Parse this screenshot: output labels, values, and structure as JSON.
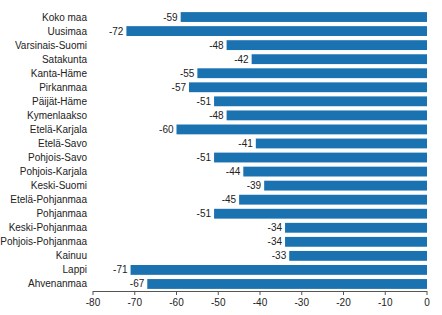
{
  "chart_data": {
    "type": "bar",
    "orientation": "horizontal",
    "categories": [
      "Koko maa",
      "Uusimaa",
      "Varsinais-Suomi",
      "Satakunta",
      "Kanta-Häme",
      "Pirkanmaa",
      "Päijät-Häme",
      "Kymenlaakso",
      "Etelä-Karjala",
      "Etelä-Savo",
      "Pohjois-Savo",
      "Pohjois-Karjala",
      "Keski-Suomi",
      "Etelä-Pohjanmaa",
      "Pohjanmaa",
      "Keski-Pohjanmaa",
      "Pohjois-Pohjanmaa",
      "Kainuu",
      "Lappi",
      "Ahvenanmaa"
    ],
    "values": [
      -59,
      -72,
      -48,
      -42,
      -55,
      -57,
      -51,
      -48,
      -60,
      -41,
      -51,
      -44,
      -39,
      -45,
      -51,
      -34,
      -34,
      -33,
      -71,
      -67
    ],
    "color": "#1a72b0",
    "xlim": [
      -80,
      0
    ],
    "xticks": [
      -80,
      -70,
      -60,
      -50,
      -40,
      -30,
      -20,
      -10,
      0
    ],
    "grid": false,
    "data_labels": true
  }
}
